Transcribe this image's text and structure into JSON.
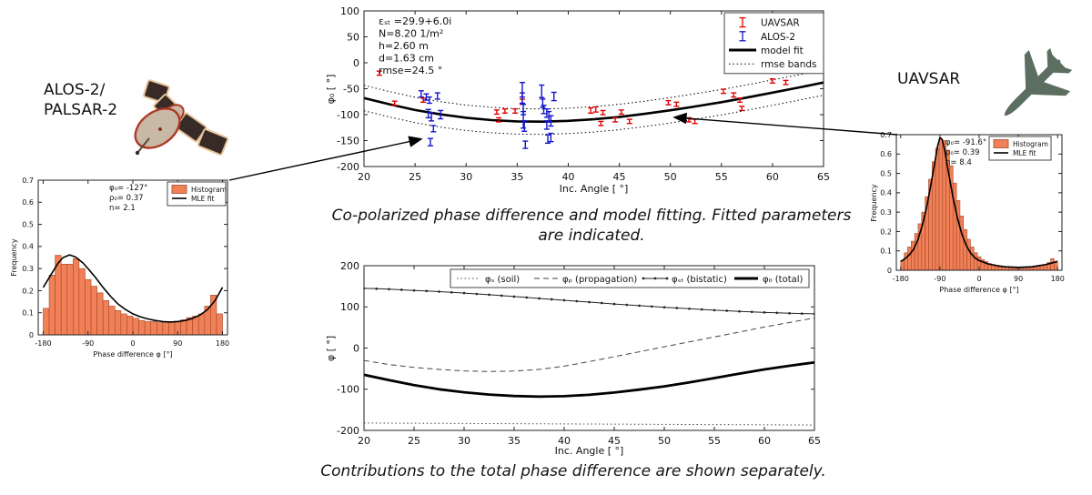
{
  "labels": {
    "alos": "ALOS-2/\nPALSAR-2",
    "uavsar": "UAVSAR",
    "caption_top": "Co-polarized phase difference and model fitting. Fitted parameters are indicated.",
    "caption_bottom": "Contributions to the total phase difference are shown separately."
  },
  "colors": {
    "uavsar_red": "#e60000",
    "alos_blue": "#1414cc",
    "model_black": "#000000",
    "hist_fill": "#f28057",
    "hist_edge": "#a04a2e",
    "plane_green": "#5c6e60",
    "sat_panel": "#382a26",
    "sat_panel_edge": "#e8c49c",
    "sat_dish": "#c8b8a6",
    "sat_dish_edge": "#ae3a26"
  },
  "chart_data": [
    {
      "id": "top-scatter",
      "type": "scatter",
      "xlabel": "Inc. Angle [ °]",
      "ylabel": "φ₀ [ °]",
      "xlim": [
        20,
        65
      ],
      "ylim": [
        -200,
        100
      ],
      "xticks": [
        20,
        25,
        30,
        35,
        40,
        45,
        50,
        55,
        60,
        65
      ],
      "yticks": [
        -200,
        -150,
        -100,
        -50,
        0,
        50,
        100
      ],
      "annotation_lines": [
        "εₛₜ =29.9+6.0i",
        "N=8.20 1/m²",
        "h=2.60 m",
        "d=1.63 cm",
        "rmse=24.5 °"
      ],
      "legend": [
        {
          "label": "UAVSAR",
          "style": "errorbar",
          "color": "#e60000"
        },
        {
          "label": "ALOS-2",
          "style": "errorbar",
          "color": "#1414cc"
        },
        {
          "label": "model fit",
          "style": "line-thick",
          "color": "#000000"
        },
        {
          "label": "rmse bands",
          "style": "line-dotted",
          "color": "#000000"
        }
      ],
      "series": [
        {
          "name": "model fit",
          "type": "line",
          "width": 2.6,
          "color": "#000000",
          "xstart": 20,
          "xstep": 2.5,
          "y": [
            -68,
            -80,
            -91,
            -99.5,
            -106,
            -110.5,
            -113,
            -113.5,
            -112,
            -109,
            -104.5,
            -98.5,
            -91.5,
            -84,
            -76,
            -67,
            -57.5,
            -48,
            -38
          ]
        },
        {
          "name": "rmse bands",
          "type": "band",
          "ref": "model fit",
          "offset": 24.5,
          "color": "#000000"
        },
        {
          "name": "UAVSAR",
          "type": "errorbar",
          "color": "#e60000",
          "points": [
            [
              21.5,
              -20,
              4
            ],
            [
              23.0,
              -78,
              4
            ],
            [
              25.8,
              -72,
              4
            ],
            [
              33.0,
              -95,
              4
            ],
            [
              33.8,
              -93,
              4
            ],
            [
              34.8,
              -93,
              4
            ],
            [
              35.5,
              -75,
              5
            ],
            [
              33.2,
              -110,
              4
            ],
            [
              42.2,
              -92,
              5
            ],
            [
              42.7,
              -90,
              5
            ],
            [
              43.4,
              -96,
              4
            ],
            [
              43.2,
              -117,
              4
            ],
            [
              44.6,
              -110,
              4
            ],
            [
              45.2,
              -95,
              4
            ],
            [
              46.0,
              -113,
              4
            ],
            [
              49.8,
              -77,
              4
            ],
            [
              50.6,
              -80,
              4
            ],
            [
              51.8,
              -110,
              4
            ],
            [
              52.4,
              -113,
              4
            ],
            [
              55.2,
              -55,
              4
            ],
            [
              56.2,
              -62,
              4
            ],
            [
              56.8,
              -72,
              4
            ],
            [
              57.0,
              -88,
              4
            ],
            [
              60.0,
              -35,
              4
            ],
            [
              61.3,
              -38,
              4
            ]
          ]
        },
        {
          "name": "ALOS-2",
          "type": "errorbar",
          "color": "#1414cc",
          "points": [
            [
              25.6,
              -60,
              6
            ],
            [
              26.1,
              -66,
              6
            ],
            [
              26.4,
              -72,
              6
            ],
            [
              27.2,
              -64,
              6
            ],
            [
              26.3,
              -98,
              8
            ],
            [
              26.6,
              -104,
              8
            ],
            [
              27.5,
              -100,
              8
            ],
            [
              26.8,
              -127,
              6
            ],
            [
              26.5,
              -153,
              7
            ],
            [
              35.5,
              -52,
              14
            ],
            [
              35.5,
              -68,
              10
            ],
            [
              35.6,
              -90,
              10
            ],
            [
              35.6,
              -110,
              16
            ],
            [
              35.7,
              -122,
              10
            ],
            [
              35.8,
              -158,
              7
            ],
            [
              37.4,
              -55,
              12
            ],
            [
              37.5,
              -78,
              8
            ],
            [
              37.6,
              -90,
              8
            ],
            [
              37.9,
              -97,
              8
            ],
            [
              38.1,
              -104,
              10
            ],
            [
              38.3,
              -112,
              10
            ],
            [
              37.9,
              -120,
              8
            ],
            [
              38.0,
              -147,
              8
            ],
            [
              38.3,
              -144,
              8
            ],
            [
              38.6,
              -65,
              8
            ]
          ]
        }
      ]
    },
    {
      "id": "left-hist",
      "type": "bar",
      "xlabel": "Phase difference φ [°]",
      "ylabel": "Frequency",
      "xlim": [
        -190,
        190
      ],
      "ylim": [
        0,
        0.7
      ],
      "xticks": [
        -180,
        -90,
        0,
        90,
        180
      ],
      "yticks": [
        0,
        0.1,
        0.2,
        0.3,
        0.4,
        0.5,
        0.6,
        0.7
      ],
      "annotation_lines": [
        "φ₀= -127°",
        "ρ₀= 0.37",
        "n= 2.1"
      ],
      "legend": [
        {
          "label": "Histogram",
          "style": "patch",
          "color": "#f28057"
        },
        {
          "label": "MLE fit",
          "style": "line",
          "color": "#000000"
        }
      ],
      "series": [
        {
          "name": "Histogram",
          "type": "bars",
          "bin_start": -180,
          "bin_width": 12,
          "values": [
            0.12,
            0.27,
            0.36,
            0.32,
            0.32,
            0.345,
            0.3,
            0.25,
            0.22,
            0.19,
            0.155,
            0.13,
            0.11,
            0.095,
            0.085,
            0.075,
            0.065,
            0.06,
            0.06,
            0.055,
            0.058,
            0.06,
            0.062,
            0.068,
            0.078,
            0.085,
            0.095,
            0.13,
            0.18,
            0.095
          ]
        },
        {
          "name": "MLE fit",
          "type": "line",
          "width": 1.6,
          "color": "#000000",
          "x": [
            -180,
            -165,
            -150,
            -140,
            -127,
            -115,
            -100,
            -90,
            -75,
            -60,
            -45,
            -30,
            -15,
            0,
            15,
            30,
            45,
            60,
            75,
            90,
            105,
            120,
            135,
            150,
            165,
            180
          ],
          "y": [
            0.215,
            0.27,
            0.325,
            0.35,
            0.362,
            0.352,
            0.325,
            0.3,
            0.26,
            0.215,
            0.175,
            0.14,
            0.115,
            0.095,
            0.082,
            0.072,
            0.065,
            0.06,
            0.058,
            0.06,
            0.065,
            0.075,
            0.09,
            0.115,
            0.155,
            0.215
          ]
        }
      ]
    },
    {
      "id": "right-hist",
      "type": "bar",
      "xlabel": "Phase difference φ [°]",
      "ylabel": "Frequency",
      "xlim": [
        -190,
        190
      ],
      "ylim": [
        0,
        0.7
      ],
      "xticks": [
        -180,
        -90,
        0,
        90,
        180
      ],
      "yticks": [
        0,
        0.1,
        0.2,
        0.3,
        0.4,
        0.5,
        0.6,
        0.7
      ],
      "annotation_lines": [
        "φ₀= -91.6°",
        "ρ₀= 0.39",
        "n= 8.4"
      ],
      "legend": [
        {
          "label": "Histogram",
          "style": "patch",
          "color": "#f28057"
        },
        {
          "label": "MLE fit",
          "style": "line",
          "color": "#000000"
        }
      ],
      "series": [
        {
          "name": "Histogram",
          "type": "bars",
          "bin_start": -180,
          "bin_width": 8,
          "values": [
            0.05,
            0.09,
            0.12,
            0.15,
            0.19,
            0.24,
            0.3,
            0.38,
            0.47,
            0.56,
            0.63,
            0.68,
            0.67,
            0.62,
            0.54,
            0.45,
            0.36,
            0.28,
            0.21,
            0.16,
            0.12,
            0.09,
            0.07,
            0.055,
            0.045,
            0.035,
            0.03,
            0.025,
            0.02,
            0.018,
            0.015,
            0.013,
            0.012,
            0.011,
            0.01,
            0.011,
            0.012,
            0.014,
            0.016,
            0.02,
            0.024,
            0.03,
            0.04,
            0.06,
            0.04
          ]
        },
        {
          "name": "MLE fit",
          "type": "line",
          "width": 1.6,
          "color": "#000000",
          "x": [
            -180,
            -170,
            -160,
            -150,
            -140,
            -130,
            -120,
            -110,
            -100,
            -95,
            -90,
            -85,
            -80,
            -70,
            -60,
            -50,
            -40,
            -30,
            -20,
            -10,
            0,
            20,
            40,
            60,
            90,
            120,
            150,
            165,
            180
          ],
          "y": [
            0.045,
            0.06,
            0.08,
            0.11,
            0.16,
            0.235,
            0.33,
            0.45,
            0.58,
            0.645,
            0.685,
            0.675,
            0.63,
            0.5,
            0.375,
            0.27,
            0.19,
            0.13,
            0.09,
            0.065,
            0.05,
            0.033,
            0.024,
            0.018,
            0.015,
            0.018,
            0.028,
            0.036,
            0.046
          ]
        }
      ]
    },
    {
      "id": "bottom-lines",
      "type": "line",
      "xlabel": "Inc. Angle [ °]",
      "ylabel": "φ [ °]",
      "xlim": [
        20,
        65
      ],
      "ylim": [
        -200,
        200
      ],
      "xticks": [
        20,
        25,
        30,
        35,
        40,
        45,
        50,
        55,
        60,
        65
      ],
      "yticks": [
        -200,
        -100,
        0,
        100,
        200
      ],
      "annotation_lines": [],
      "legend": [
        {
          "label": "φₛ (soil)",
          "style": "line-dotted",
          "color": "#444444"
        },
        {
          "label": "φₚ (propagation)",
          "style": "line-dashed",
          "color": "#444444"
        },
        {
          "label": "φₛₜ (bistatic)",
          "style": "line-marker",
          "color": "#222222"
        },
        {
          "label": "φ₀ (total)",
          "style": "line-thick",
          "color": "#000000"
        }
      ],
      "series": [
        {
          "name": "φₛ (soil)",
          "type": "line",
          "style": "dotted",
          "width": 1,
          "color": "#444444",
          "x": [
            20,
            65
          ],
          "y": [
            -182,
            -187
          ]
        },
        {
          "name": "φₚ (propagation)",
          "type": "line",
          "style": "dashed",
          "width": 1,
          "color": "#444444",
          "xstart": 20,
          "xstep": 2.5,
          "y": [
            -30,
            -40,
            -47,
            -52,
            -55.5,
            -57,
            -56,
            -52,
            -44,
            -33,
            -21,
            -9,
            3,
            15,
            27,
            39,
            51,
            62,
            73
          ]
        },
        {
          "name": "φₛₜ (bistatic)",
          "type": "line",
          "width": 1,
          "color": "#222222",
          "marker": "dot",
          "xstart": 20,
          "xstep": 1.25,
          "y": [
            145,
            144,
            143,
            141.5,
            140,
            138.5,
            137,
            135.3,
            133.5,
            131.5,
            129.5,
            127.3,
            125,
            122.8,
            120.5,
            118.3,
            116,
            113.8,
            111.5,
            109.3,
            107,
            105,
            103,
            101,
            99,
            97.3,
            95.5,
            93.8,
            92,
            90.5,
            89,
            87.8,
            86.5,
            85.5,
            84.5,
            83.7,
            83
          ]
        },
        {
          "name": "φ₀ (total)",
          "type": "line",
          "width": 2.8,
          "color": "#000000",
          "xstart": 20,
          "xstep": 2.5,
          "y": [
            -65,
            -78,
            -90,
            -100,
            -107.5,
            -113,
            -116.5,
            -118,
            -117,
            -113.5,
            -108,
            -101,
            -93,
            -83.5,
            -73,
            -62,
            -52,
            -43,
            -35
          ]
        }
      ]
    }
  ],
  "arrows": [
    {
      "name": "alos-annotation-arrow"
    },
    {
      "name": "uavsar-annotation-arrow"
    }
  ]
}
